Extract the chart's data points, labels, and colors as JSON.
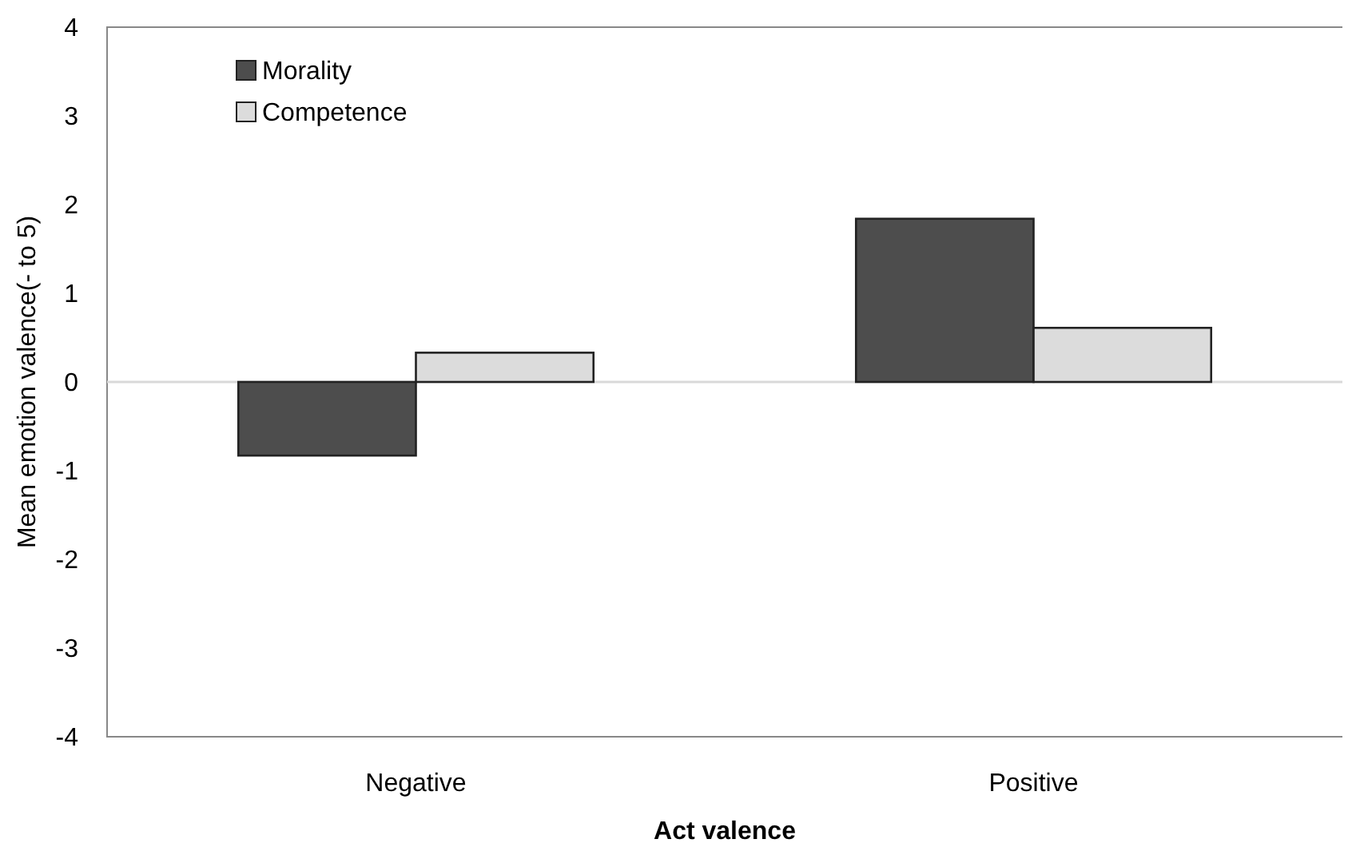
{
  "chart_data": {
    "type": "bar",
    "xlabel": "Act valence",
    "ylabel": "Mean emotion valence(- to 5)",
    "categories": [
      "Negative",
      "Positive"
    ],
    "series": [
      {
        "name": "Morality",
        "color": "#4d4d4d",
        "values": [
          -0.83,
          1.84
        ]
      },
      {
        "name": "Competence",
        "color": "#dcdcdc",
        "values": [
          0.33,
          0.61
        ]
      }
    ],
    "ylim": [
      -4,
      4
    ],
    "yticks": [
      -4,
      -3,
      -2,
      -1,
      0,
      1,
      2,
      3,
      4
    ],
    "legend": "top left",
    "ref_lines": [
      {
        "axis": "y",
        "value": 0,
        "color": "#d9d9d9"
      }
    ]
  }
}
